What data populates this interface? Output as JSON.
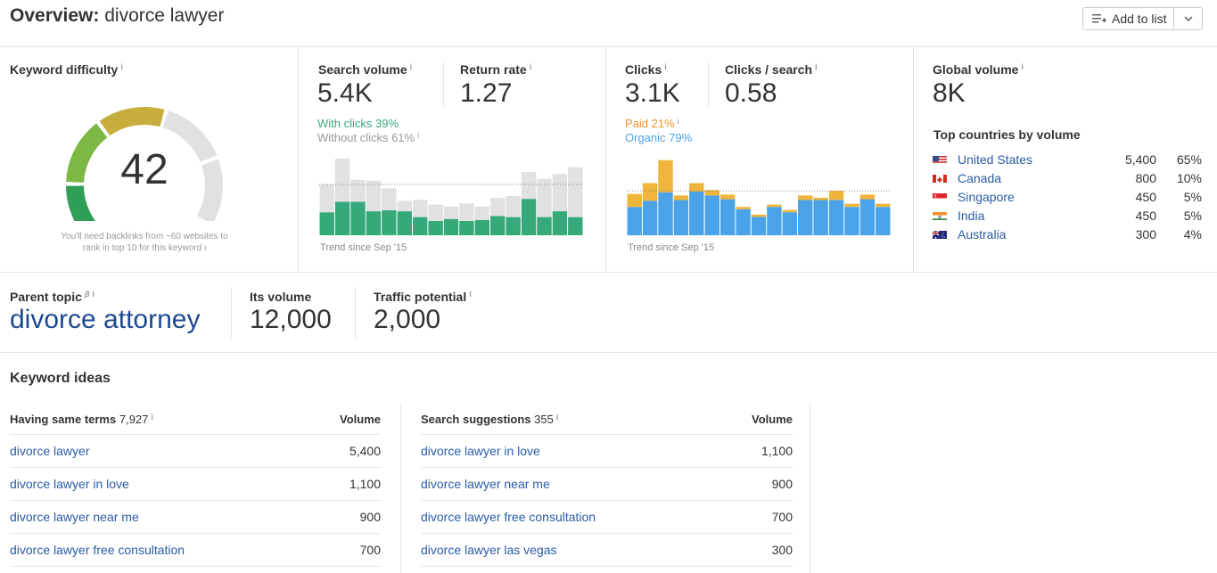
{
  "header": {
    "title_prefix": "Overview:",
    "title_keyword": "divorce lawyer",
    "add_to_list_label": "Add to list"
  },
  "keyword_difficulty": {
    "label": "Keyword difficulty",
    "value": "42",
    "gauge_fraction": 0.42,
    "note_line1": "You'll need backlinks from ~60 websites to",
    "note_line2": "rank in top 10 for this keyword"
  },
  "search_volume": {
    "label": "Search volume",
    "value": "5.4K",
    "with_clicks": "With clicks 39%",
    "without_clicks": "Without clicks 61%",
    "return_rate_label": "Return rate",
    "return_rate_value": "1.27",
    "trend_label": "Trend since Sep '15",
    "chart_data": {
      "type": "bar",
      "stacked": true,
      "series": [
        {
          "name": "With clicks",
          "color": "#35a97a",
          "values": [
            24,
            35,
            35,
            25,
            26,
            25,
            19,
            15,
            17,
            15,
            16,
            20,
            19,
            38,
            19,
            25,
            19
          ]
        },
        {
          "name": "Without clicks",
          "color": "#e1e1e1",
          "values": [
            29,
            45,
            23,
            32,
            23,
            11,
            18,
            17,
            13,
            18,
            14,
            19,
            22,
            28,
            40,
            39,
            52
          ]
        }
      ],
      "ylim": [
        0,
        80
      ],
      "average_line": 53
    }
  },
  "clicks": {
    "label": "Clicks",
    "value": "3.1K",
    "paid": "Paid 21%",
    "organic": "Organic 79%",
    "clicks_per_search_label": "Clicks / search",
    "clicks_per_search_value": "0.58",
    "trend_label": "Trend since Sep '15",
    "chart_data": {
      "type": "bar",
      "stacked": true,
      "series": [
        {
          "name": "Organic",
          "color": "#4aa3e8",
          "values": [
            37,
            45,
            56,
            46,
            57,
            52,
            47,
            34,
            24,
            37,
            30,
            46,
            46,
            46,
            37,
            47,
            37
          ]
        },
        {
          "name": "Paid",
          "color": "#eeb53a",
          "values": [
            17,
            23,
            42,
            6,
            11,
            7,
            6,
            3,
            3,
            3,
            3,
            6,
            3,
            12,
            4,
            6,
            4
          ]
        }
      ],
      "ylim": [
        0,
        100
      ],
      "average_line": 58
    }
  },
  "global_volume": {
    "label": "Global volume",
    "value": "8K",
    "top_countries_label": "Top countries by volume",
    "countries": [
      {
        "name": "United States",
        "volume": "5,400",
        "pct": "65%",
        "flag": "us-flag-icon"
      },
      {
        "name": "Canada",
        "volume": "800",
        "pct": "10%",
        "flag": "ca-flag-icon"
      },
      {
        "name": "Singapore",
        "volume": "450",
        "pct": "5%",
        "flag": "sg-flag-icon"
      },
      {
        "name": "India",
        "volume": "450",
        "pct": "5%",
        "flag": "in-flag-icon"
      },
      {
        "name": "Australia",
        "volume": "300",
        "pct": "4%",
        "flag": "au-flag-icon"
      }
    ]
  },
  "parent_topic": {
    "label": "Parent topic",
    "beta": "β",
    "value": "divorce attorney",
    "its_volume_label": "Its volume",
    "its_volume_value": "12,000",
    "traffic_potential_label": "Traffic potential",
    "traffic_potential_value": "2,000"
  },
  "keyword_ideas": {
    "title": "Keyword ideas",
    "same_terms": {
      "label": "Having same terms",
      "count": "7,927",
      "volume_header": "Volume",
      "rows": [
        {
          "keyword": "divorce lawyer",
          "volume": "5,400"
        },
        {
          "keyword": "divorce lawyer in love",
          "volume": "1,100"
        },
        {
          "keyword": "divorce lawyer near me",
          "volume": "900"
        },
        {
          "keyword": "divorce lawyer free consultation",
          "volume": "700"
        }
      ]
    },
    "suggestions": {
      "label": "Search suggestions",
      "count": "355",
      "volume_header": "Volume",
      "rows": [
        {
          "keyword": "divorce lawyer in love",
          "volume": "1,100"
        },
        {
          "keyword": "divorce lawyer near me",
          "volume": "900"
        },
        {
          "keyword": "divorce lawyer free consultation",
          "volume": "700"
        },
        {
          "keyword": "divorce lawyer las vegas",
          "volume": "300"
        }
      ]
    }
  },
  "info_glyph": "i",
  "colors": {
    "link": "#2a5ba8",
    "with_clicks": "#35a97a",
    "paid": "#f0922b",
    "organic": "#4aa3e8"
  }
}
